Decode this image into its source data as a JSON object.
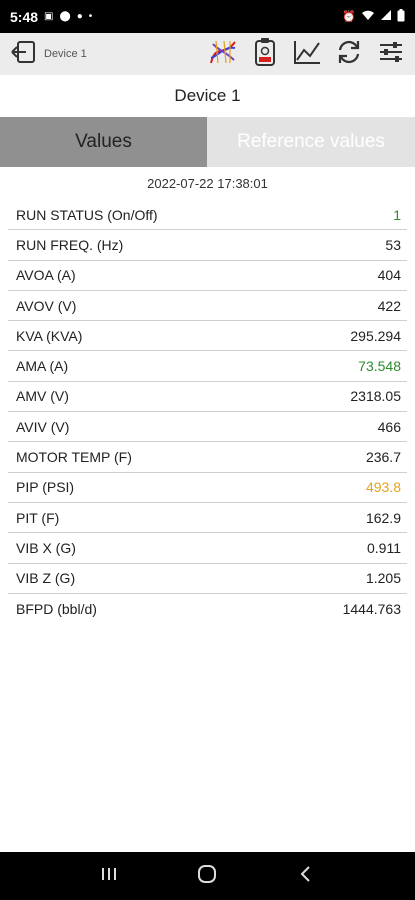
{
  "status_bar": {
    "time": "5:48"
  },
  "toolbar": {
    "device_label": "Device 1",
    "icons": [
      "exit-icon",
      "chart-curves-icon",
      "device-badge-icon",
      "trend-chart-icon",
      "refresh-icon",
      "settings-sliders-icon"
    ]
  },
  "page": {
    "title": "Device 1"
  },
  "tabs": {
    "values": "Values",
    "reference": "Reference values"
  },
  "table": {
    "timestamp": "2022-07-22 17:38:01",
    "rows": [
      {
        "label": "RUN STATUS (On/Off)",
        "value": "1",
        "color": "#2e8b2e"
      },
      {
        "label": "RUN FREQ. (Hz)",
        "value": "53",
        "color": "#222222"
      },
      {
        "label": "AVOA (A)",
        "value": "404",
        "color": "#222222"
      },
      {
        "label": "AVOV (V)",
        "value": "422",
        "color": "#222222"
      },
      {
        "label": "KVA (KVA)",
        "value": "295.294",
        "color": "#222222"
      },
      {
        "label": "AMA (A)",
        "value": "73.548",
        "color": "#2e8b2e"
      },
      {
        "label": "AMV (V)",
        "value": "2318.05",
        "color": "#222222"
      },
      {
        "label": "AVIV (V)",
        "value": "466",
        "color": "#222222"
      },
      {
        "label": "MOTOR TEMP (F)",
        "value": "236.7",
        "color": "#222222"
      },
      {
        "label": "PIP (PSI)",
        "value": "493.8",
        "color": "#e6a21e"
      },
      {
        "label": "PIT (F)",
        "value": "162.9",
        "color": "#222222"
      },
      {
        "label": "VIB X (G)",
        "value": "0.911",
        "color": "#222222"
      },
      {
        "label": "VIB Z (G)",
        "value": "1.205",
        "color": "#222222"
      },
      {
        "label": "BFPD (bbl/d)",
        "value": "1444.763",
        "color": "#222222"
      }
    ]
  }
}
